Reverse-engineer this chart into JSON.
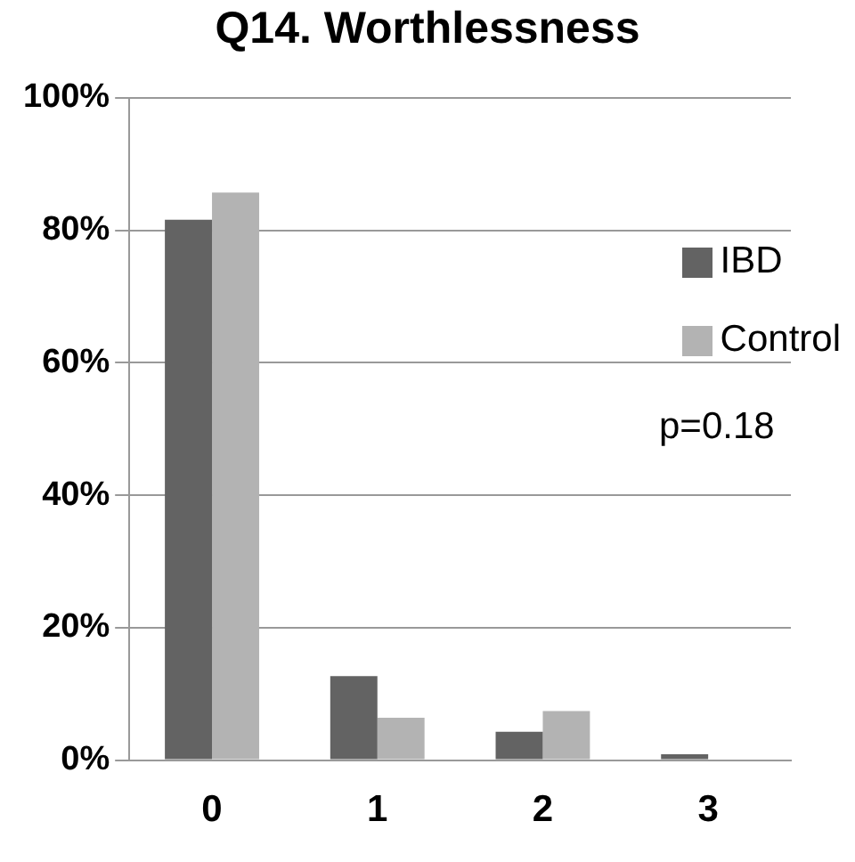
{
  "chart_data": {
    "type": "bar",
    "title": "Q14. Worthlessness",
    "categories": [
      "0",
      "1",
      "2",
      "3"
    ],
    "series": [
      {
        "name": "IBD",
        "color": "#636363",
        "values": [
          81.6,
          12.7,
          4.3,
          0.9
        ]
      },
      {
        "name": "Control",
        "color": "#b3b3b3",
        "values": [
          85.7,
          6.4,
          7.4,
          0
        ]
      }
    ],
    "ylim": [
      0,
      100
    ],
    "yticks": [
      {
        "value": 0,
        "label": "0%"
      },
      {
        "value": 20,
        "label": "20%"
      },
      {
        "value": 40,
        "label": "40%"
      },
      {
        "value": 60,
        "label": "60%"
      },
      {
        "value": 80,
        "label": "80%"
      },
      {
        "value": 100,
        "label": "100%"
      }
    ],
    "grid": "y",
    "legend": "top right",
    "annotations": [
      "p=0.18"
    ]
  }
}
